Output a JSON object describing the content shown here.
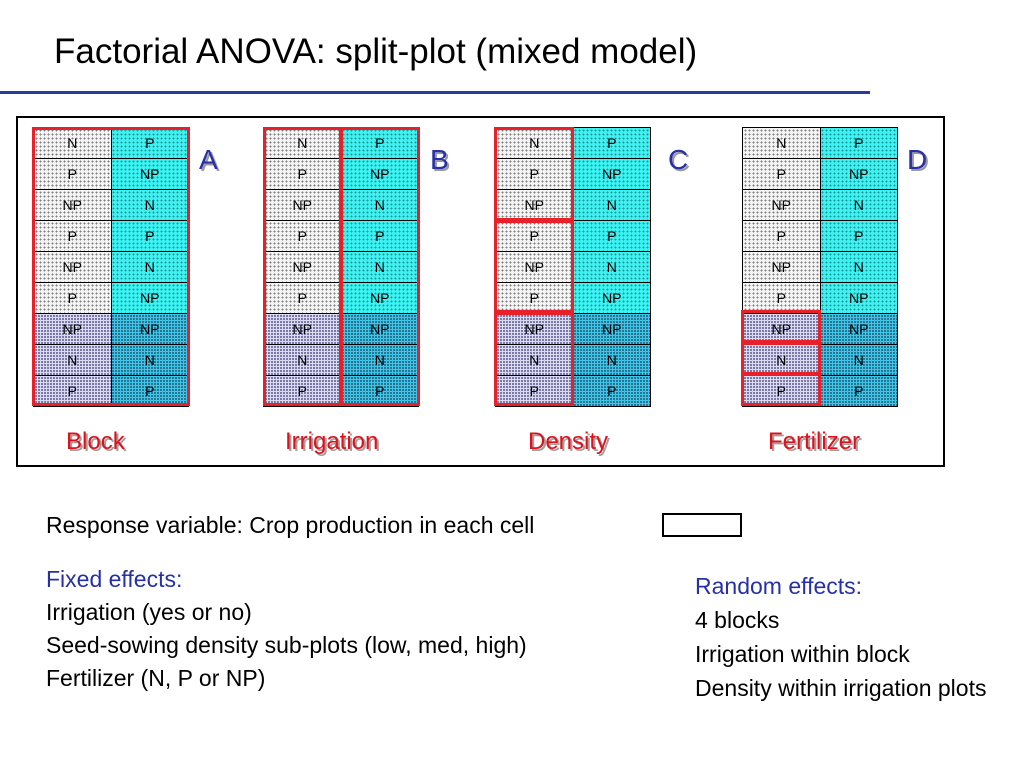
{
  "title": "Factorial ANOVA: split-plot (mixed model)",
  "cells": [
    [
      "N",
      "P"
    ],
    [
      "P",
      "NP"
    ],
    [
      "NP",
      "N"
    ],
    [
      "P",
      "P"
    ],
    [
      "NP",
      "N"
    ],
    [
      "P",
      "NP"
    ],
    [
      "NP",
      "NP"
    ],
    [
      "N",
      "N"
    ],
    [
      "P",
      "P"
    ]
  ],
  "grids": [
    {
      "letter": "A",
      "caption": "Block"
    },
    {
      "letter": "B",
      "caption": "Irrigation"
    },
    {
      "letter": "C",
      "caption": "Density"
    },
    {
      "letter": "D",
      "caption": "Fertilizer"
    }
  ],
  "colors": {
    "highlight": "#e8202a",
    "title_rule": "#2b3a9e",
    "letters": "#2630a8",
    "captions": "#e0101a",
    "headings": "#2630a8"
  },
  "response_text": "Response variable:  Crop production in each cell",
  "fixed_effects": {
    "heading": "Fixed effects:",
    "items": [
      "Irrigation (yes or no)",
      "Seed-sowing density sub-plots (low, med, high)",
      "Fertilizer (N, P or NP)"
    ]
  },
  "random_effects": {
    "heading": "Random effects:",
    "items": [
      "4 blocks",
      "Irrigation within block",
      "Density within irrigation plots"
    ]
  }
}
